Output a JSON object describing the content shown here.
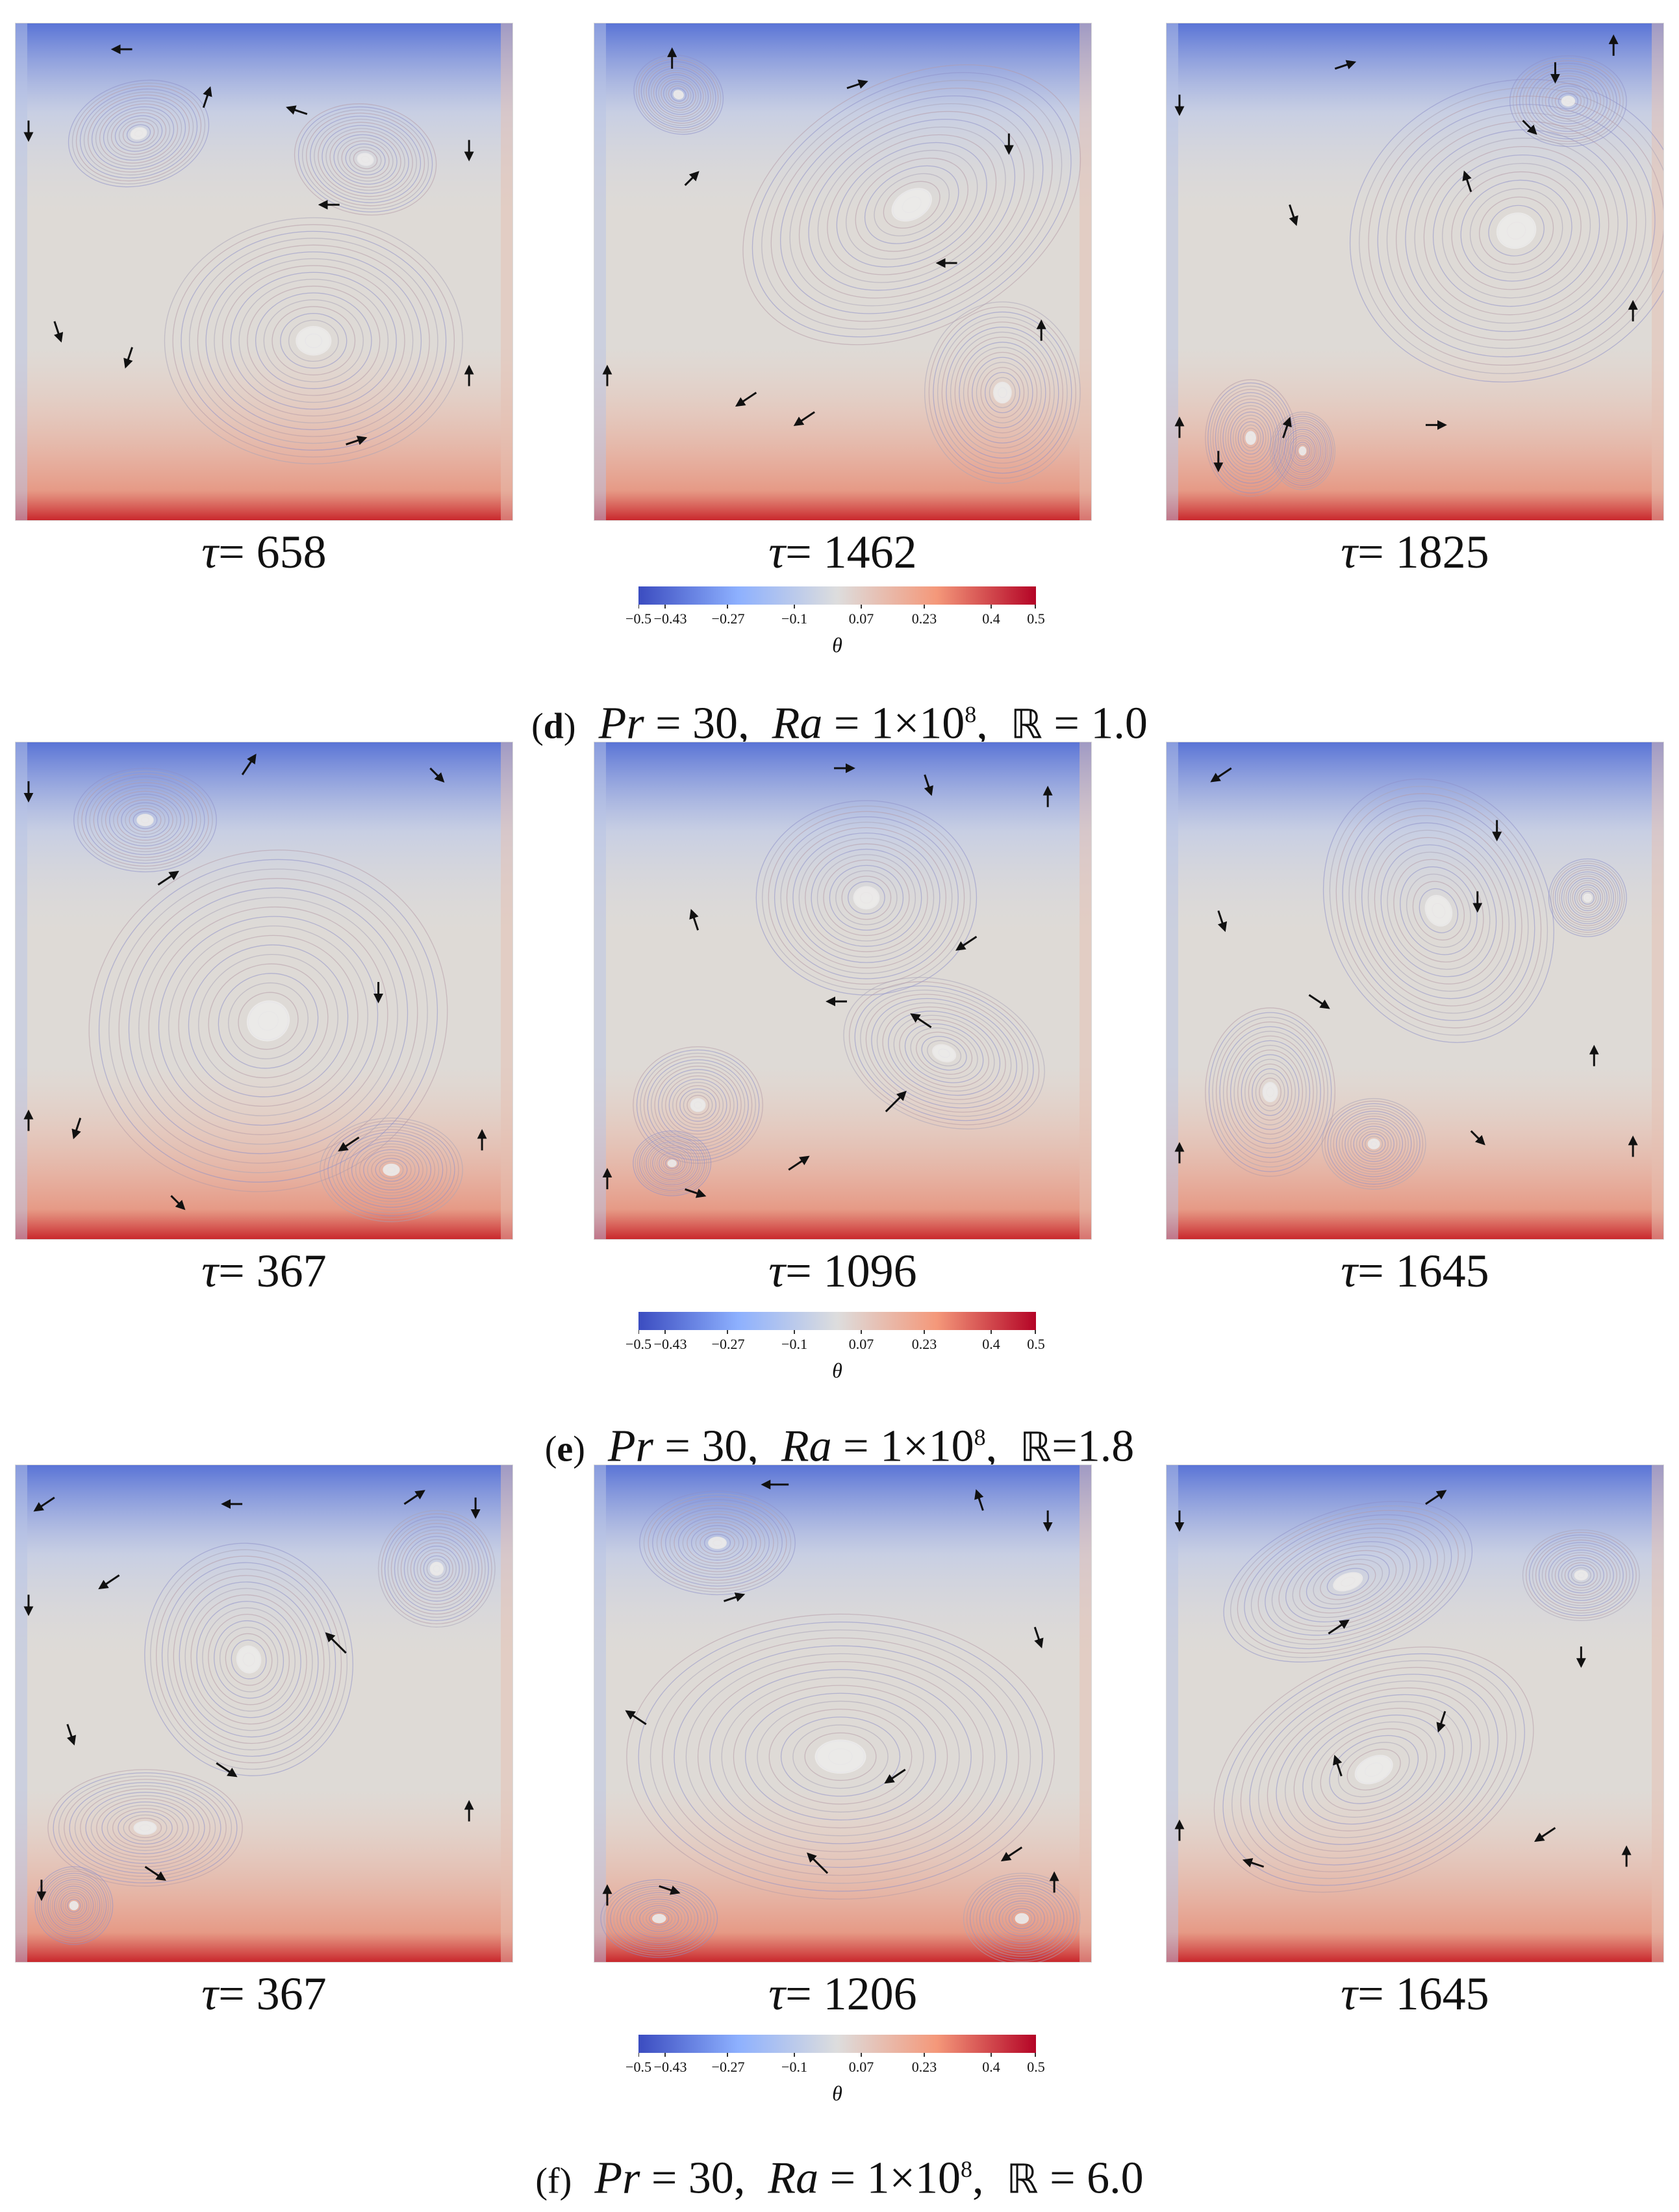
{
  "colorbar": {
    "label": "θ",
    "ticks": [
      "−0.5",
      "−0.43",
      "−0.27",
      "−0.1",
      "0.07",
      "0.23",
      "0.4",
      "0.5"
    ],
    "colors": {
      "cold": "#3b4cc0",
      "neutral": "#dcdcdc",
      "hot": "#b40426"
    }
  },
  "groups": [
    {
      "letter": "d",
      "caption": {
        "pr_label": "Pr",
        "pr_value": "= 30",
        "ra_label": "Ra",
        "ra_value": "= 1×10",
        "ra_exp": "8",
        "r_symbol": "ℝ",
        "r_value": "= 1.0"
      },
      "panels": [
        {
          "tau_symbol": "τ",
          "tau_value": "= 658"
        },
        {
          "tau_symbol": "τ",
          "tau_value": "= 1462"
        },
        {
          "tau_symbol": "τ",
          "tau_value": "= 1825"
        }
      ]
    },
    {
      "letter": "e",
      "caption": {
        "pr_label": "Pr",
        "pr_value": "= 30",
        "ra_label": "Ra",
        "ra_value": "= 1×10",
        "ra_exp": "8",
        "r_symbol": "ℝ",
        "r_value": "=1.8"
      },
      "panels": [
        {
          "tau_symbol": "τ",
          "tau_value": "= 367"
        },
        {
          "tau_symbol": "τ",
          "tau_value": "= 1096"
        },
        {
          "tau_symbol": "τ",
          "tau_value": "= 1645"
        }
      ]
    },
    {
      "letter": "f",
      "caption": {
        "pr_label": "Pr",
        "pr_value": "= 30",
        "ra_label": "Ra",
        "ra_value": "= 1×10",
        "ra_exp": "8",
        "r_symbol": "ℝ",
        "r_value": "= 6.0"
      },
      "panels": [
        {
          "tau_symbol": "τ",
          "tau_value": "= 367"
        },
        {
          "tau_symbol": "τ",
          "tau_value": "= 1206"
        },
        {
          "tau_symbol": "τ",
          "tau_value": "= 1645"
        }
      ]
    }
  ]
}
